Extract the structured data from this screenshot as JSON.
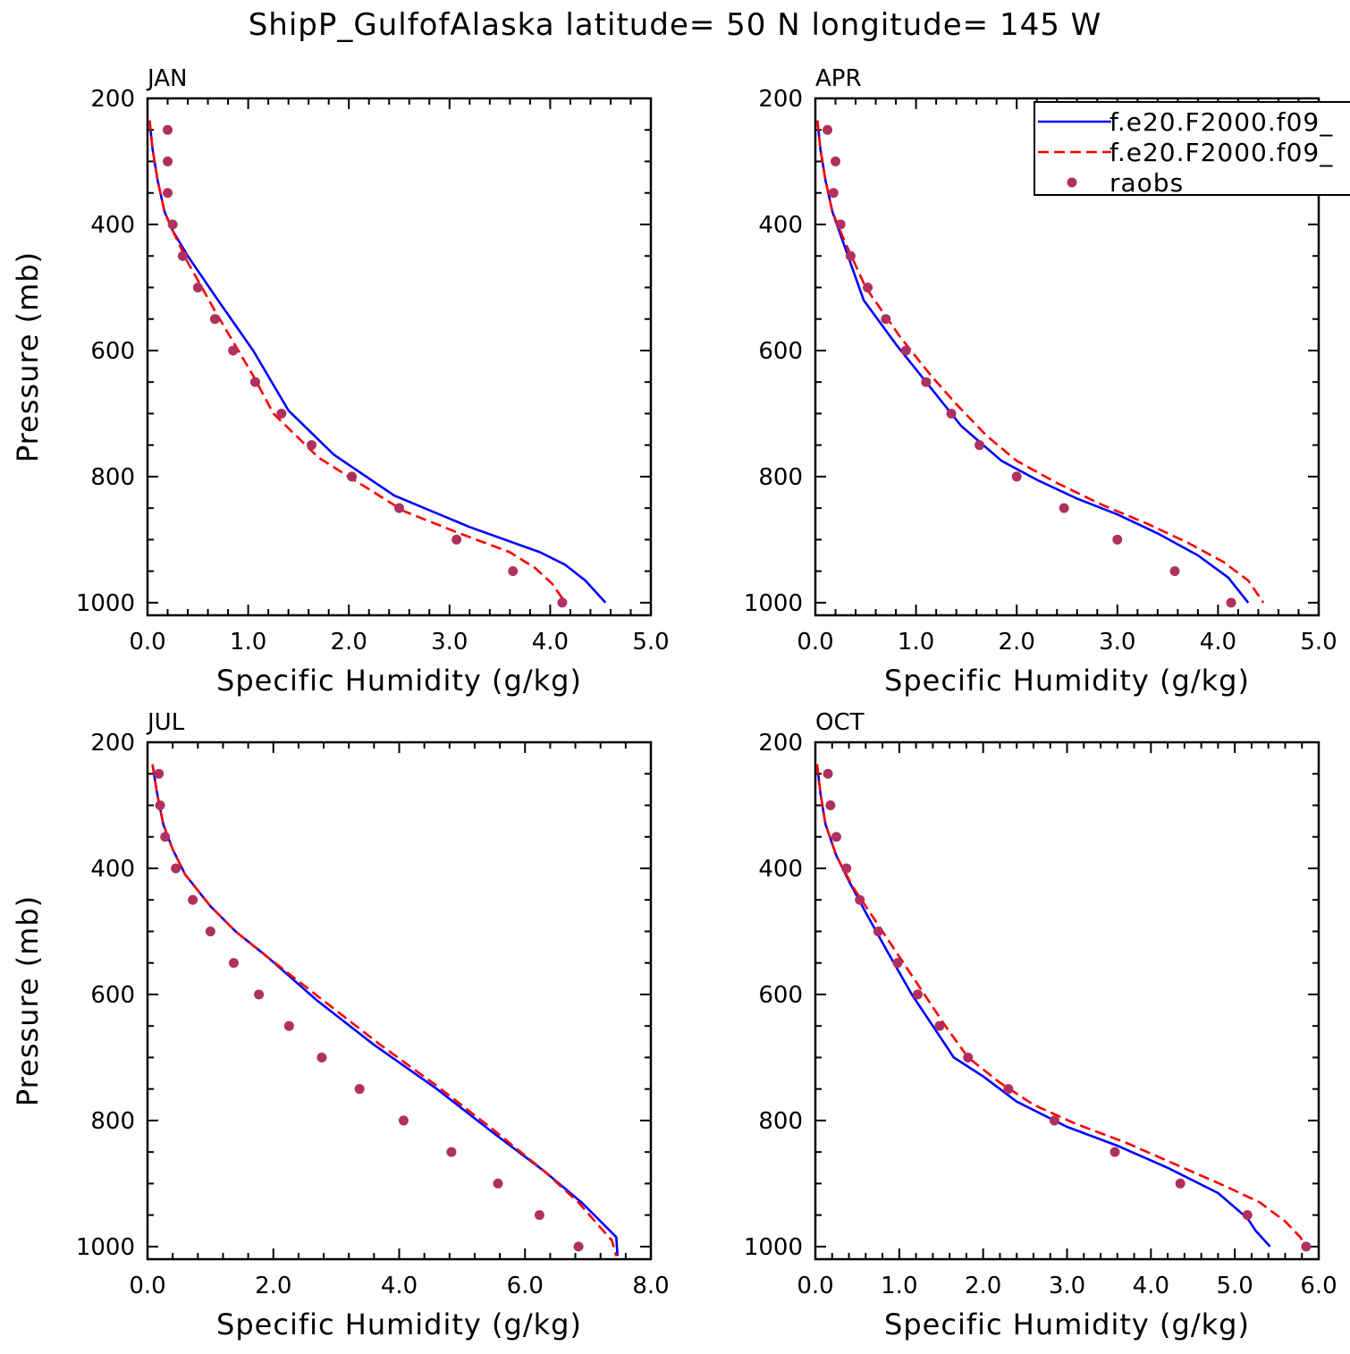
{
  "figure": {
    "title": "ShipP_GulfofAlaska  latitude= 50 N longitude= 145 W",
    "colors": {
      "model1": "#0000ff",
      "model2": "#ff0000",
      "obs": "#b03060",
      "axis": "#000000"
    }
  },
  "chart_data": [
    {
      "type": "line",
      "panel_label": "JAN",
      "xlabel": "Specific Humidity (g/kg)",
      "ylabel": "Pressure (mb)",
      "xlim": [
        0,
        5
      ],
      "ylim": [
        1020,
        200
      ],
      "y_inverted": true,
      "xticks": [
        "0.0",
        "1.0",
        "2.0",
        "3.0",
        "4.0",
        "5.0"
      ],
      "xtick_values": [
        0,
        1,
        2,
        3,
        4,
        5
      ],
      "yticks": [
        "200",
        "400",
        "600",
        "800",
        "1000"
      ],
      "ytick_values": [
        200,
        400,
        600,
        800,
        1000
      ],
      "legend": null,
      "series": [
        {
          "name": "f.e20.F2000.f09_",
          "style": "solid",
          "color": "#0000ff",
          "x": [
            0.02,
            0.05,
            0.1,
            0.17,
            0.25,
            0.4,
            0.7,
            1.05,
            1.4,
            1.85,
            2.45,
            3.2,
            3.9,
            4.15,
            4.35,
            4.55
          ],
          "y": [
            235,
            280,
            330,
            380,
            410,
            450,
            520,
            600,
            695,
            765,
            830,
            880,
            920,
            940,
            965,
            1000
          ]
        },
        {
          "name": "f.e20.F2000.f09_",
          "style": "dashed",
          "color": "#ff0000",
          "x": [
            0.02,
            0.05,
            0.1,
            0.17,
            0.25,
            0.4,
            0.68,
            1.05,
            1.25,
            1.7,
            2.05,
            2.55,
            3.1,
            3.6,
            3.85,
            4.02,
            4.15
          ],
          "y": [
            235,
            280,
            330,
            380,
            410,
            460,
            540,
            640,
            700,
            770,
            805,
            855,
            890,
            920,
            945,
            970,
            1000
          ]
        },
        {
          "name": "raobs",
          "style": "dots",
          "color": "#b03060",
          "x": [
            0.2,
            0.2,
            0.2,
            0.25,
            0.35,
            0.5,
            0.67,
            0.85,
            1.07,
            1.33,
            1.63,
            2.03,
            2.5,
            3.07,
            3.63,
            4.12
          ],
          "y": [
            250,
            300,
            350,
            400,
            450,
            500,
            550,
            600,
            650,
            700,
            750,
            800,
            850,
            900,
            950,
            1000
          ]
        }
      ]
    },
    {
      "type": "line",
      "panel_label": "APR",
      "xlabel": "Specific Humidity (g/kg)",
      "ylabel": "",
      "xlim": [
        0,
        5
      ],
      "ylim": [
        1020,
        200
      ],
      "y_inverted": true,
      "xticks": [
        "0.0",
        "1.0",
        "2.0",
        "3.0",
        "4.0",
        "5.0"
      ],
      "xtick_values": [
        0,
        1,
        2,
        3,
        4,
        5
      ],
      "yticks": [
        "200",
        "400",
        "600",
        "800",
        "1000"
      ],
      "ytick_values": [
        200,
        400,
        600,
        800,
        1000
      ],
      "legend": {
        "entries": [
          {
            "label": "f.e20.F2000.f09_",
            "style": "solid",
            "color": "#0000ff"
          },
          {
            "label": "f.e20.F2000.f09_",
            "style": "dashed",
            "color": "#ff0000"
          },
          {
            "label": "raobs",
            "style": "dots",
            "color": "#b03060"
          }
        ]
      },
      "series": [
        {
          "name": "f.e20.F2000.f09_",
          "style": "solid",
          "color": "#0000ff",
          "x": [
            0.02,
            0.05,
            0.1,
            0.17,
            0.28,
            0.48,
            0.8,
            1.1,
            1.45,
            1.85,
            2.2,
            2.6,
            3.0,
            3.4,
            3.8,
            4.1,
            4.3
          ],
          "y": [
            235,
            280,
            330,
            380,
            430,
            520,
            590,
            650,
            720,
            775,
            805,
            835,
            860,
            890,
            925,
            960,
            1000
          ]
        },
        {
          "name": "f.e20.F2000.f09_",
          "style": "dashed",
          "color": "#ff0000",
          "x": [
            0.02,
            0.05,
            0.1,
            0.17,
            0.3,
            0.5,
            0.85,
            1.15,
            1.4,
            1.7,
            2.0,
            2.4,
            2.85,
            3.3,
            3.7,
            4.05,
            4.3,
            4.45
          ],
          "y": [
            235,
            280,
            330,
            380,
            430,
            500,
            580,
            640,
            685,
            735,
            775,
            810,
            845,
            875,
            905,
            935,
            965,
            1000
          ]
        },
        {
          "name": "raobs",
          "style": "dots",
          "color": "#b03060",
          "x": [
            0.12,
            0.2,
            0.18,
            0.25,
            0.35,
            0.52,
            0.7,
            0.9,
            1.1,
            1.35,
            1.63,
            2.0,
            2.47,
            3.0,
            3.57,
            4.13
          ],
          "y": [
            250,
            300,
            350,
            400,
            450,
            500,
            550,
            600,
            650,
            700,
            750,
            800,
            850,
            900,
            950,
            1000
          ]
        }
      ]
    },
    {
      "type": "line",
      "panel_label": "JUL",
      "xlabel": "Specific Humidity (g/kg)",
      "ylabel": "Pressure (mb)",
      "xlim": [
        0,
        8
      ],
      "ylim": [
        1020,
        200
      ],
      "y_inverted": true,
      "xticks": [
        "0.0",
        "2.0",
        "4.0",
        "6.0",
        "8.0"
      ],
      "xtick_values": [
        0,
        2,
        4,
        6,
        8
      ],
      "yticks": [
        "200",
        "400",
        "600",
        "800",
        "1000"
      ],
      "ytick_values": [
        200,
        400,
        600,
        800,
        1000
      ],
      "legend": null,
      "series": [
        {
          "name": "f.e20.F2000.f09_",
          "style": "solid",
          "color": "#0000ff",
          "x": [
            0.08,
            0.15,
            0.25,
            0.4,
            0.6,
            1.0,
            1.4,
            1.9,
            2.7,
            3.6,
            4.6,
            5.5,
            6.3,
            6.9,
            7.25,
            7.45,
            7.47
          ],
          "y": [
            235,
            280,
            330,
            370,
            410,
            460,
            500,
            540,
            610,
            680,
            750,
            820,
            880,
            930,
            965,
            985,
            1015
          ]
        },
        {
          "name": "f.e20.F2000.f09_",
          "style": "dashed",
          "color": "#ff0000",
          "x": [
            0.08,
            0.15,
            0.25,
            0.4,
            0.6,
            1.0,
            1.4,
            1.9,
            2.8,
            3.7,
            4.6,
            5.5,
            6.3,
            6.85,
            7.2,
            7.38,
            7.45
          ],
          "y": [
            235,
            280,
            330,
            370,
            410,
            460,
            500,
            540,
            610,
            680,
            745,
            815,
            880,
            930,
            970,
            990,
            1015
          ]
        },
        {
          "name": "raobs",
          "style": "dots",
          "color": "#b03060",
          "x": [
            0.18,
            0.2,
            0.28,
            0.45,
            0.72,
            1.0,
            1.37,
            1.77,
            2.25,
            2.77,
            3.37,
            4.07,
            4.83,
            5.57,
            6.23,
            6.85
          ],
          "y": [
            250,
            300,
            350,
            400,
            450,
            500,
            550,
            600,
            650,
            700,
            750,
            800,
            850,
            900,
            950,
            1000
          ]
        }
      ]
    },
    {
      "type": "line",
      "panel_label": "OCT",
      "xlabel": "Specific Humidity (g/kg)",
      "ylabel": "",
      "xlim": [
        0,
        6
      ],
      "ylim": [
        1020,
        200
      ],
      "y_inverted": true,
      "xticks": [
        "0.0",
        "1.0",
        "2.0",
        "3.0",
        "4.0",
        "5.0",
        "6.0"
      ],
      "xtick_values": [
        0,
        1,
        2,
        3,
        4,
        5,
        6
      ],
      "yticks": [
        "200",
        "400",
        "600",
        "800",
        "1000"
      ],
      "ytick_values": [
        200,
        400,
        600,
        800,
        1000
      ],
      "legend": null,
      "series": [
        {
          "name": "f.e20.F2000.f09_",
          "style": "solid",
          "color": "#0000ff",
          "x": [
            0.02,
            0.06,
            0.12,
            0.25,
            0.4,
            0.6,
            0.85,
            1.15,
            1.4,
            1.65,
            2.0,
            2.4,
            3.0,
            3.6,
            4.2,
            4.8,
            5.15,
            5.25,
            5.42
          ],
          "y": [
            235,
            280,
            330,
            380,
            420,
            470,
            530,
            600,
            650,
            700,
            730,
            770,
            810,
            840,
            875,
            915,
            955,
            975,
            1000
          ]
        },
        {
          "name": "f.e20.F2000.f09_",
          "style": "dashed",
          "color": "#ff0000",
          "x": [
            0.02,
            0.06,
            0.12,
            0.25,
            0.45,
            0.7,
            0.95,
            1.25,
            1.55,
            1.82,
            2.2,
            2.6,
            3.1,
            3.7,
            4.3,
            4.9,
            5.3,
            5.6,
            5.78,
            5.85
          ],
          "y": [
            235,
            280,
            330,
            380,
            430,
            480,
            530,
            590,
            650,
            700,
            740,
            775,
            805,
            835,
            870,
            905,
            930,
            960,
            985,
            1000
          ]
        },
        {
          "name": "raobs",
          "style": "dots",
          "color": "#b03060",
          "x": [
            0.15,
            0.18,
            0.25,
            0.37,
            0.53,
            0.75,
            0.98,
            1.22,
            1.48,
            1.82,
            2.3,
            2.85,
            3.57,
            4.35,
            5.15,
            5.85
          ],
          "y": [
            250,
            300,
            350,
            400,
            450,
            500,
            550,
            600,
            650,
            700,
            750,
            800,
            850,
            900,
            950,
            1000
          ]
        }
      ]
    }
  ]
}
